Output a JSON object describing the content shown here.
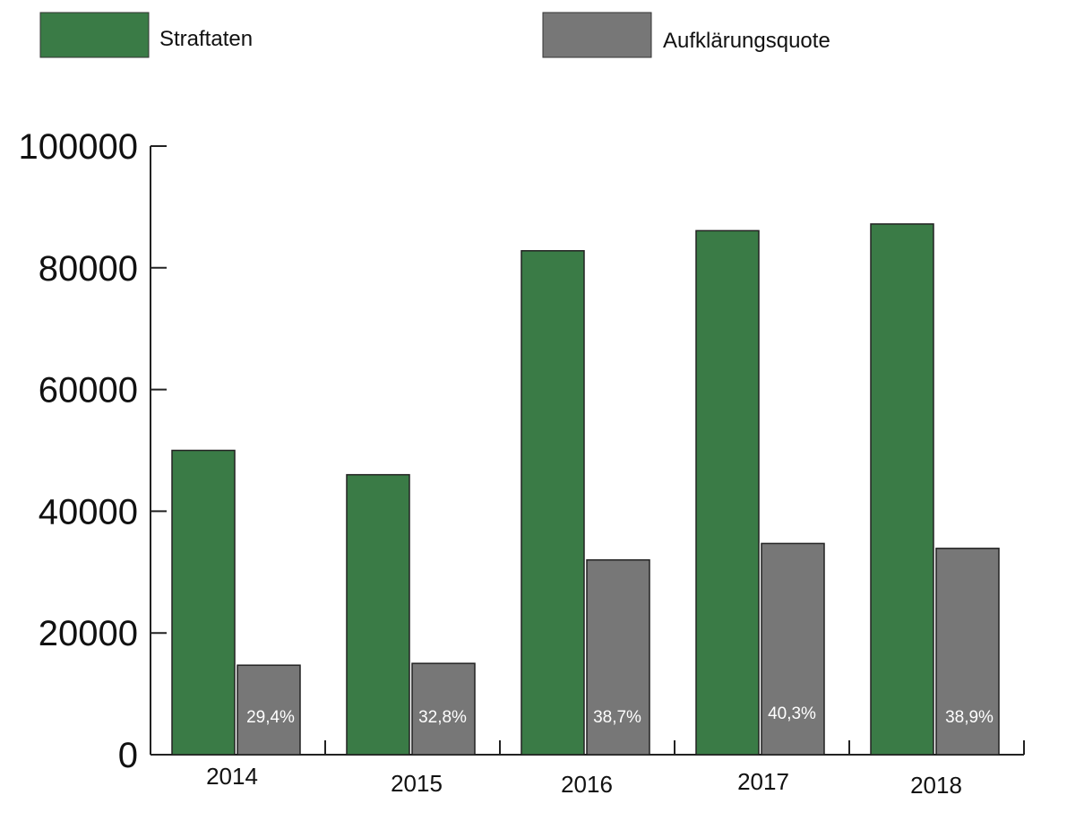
{
  "chart_data": {
    "type": "bar",
    "categories": [
      "2014",
      "2015",
      "2016",
      "2017",
      "2018"
    ],
    "series": [
      {
        "name": "Straftaten",
        "values": [
          50000,
          46000,
          82800,
          86100,
          87200
        ],
        "color": "#3a7b46"
      },
      {
        "name": "Aufklärungsquote",
        "values": [
          14700,
          15000,
          32000,
          34700,
          33900
        ],
        "color": "#777777",
        "data_labels": [
          "29,4%",
          "32,8%",
          "38,7%",
          "40,3%",
          "38,9%"
        ]
      }
    ],
    "y_ticks": [
      "0",
      "20000",
      "40000",
      "60000",
      "80000",
      "100000"
    ],
    "ylim": [
      0,
      100000
    ],
    "legend_position": "top",
    "grid": false
  }
}
